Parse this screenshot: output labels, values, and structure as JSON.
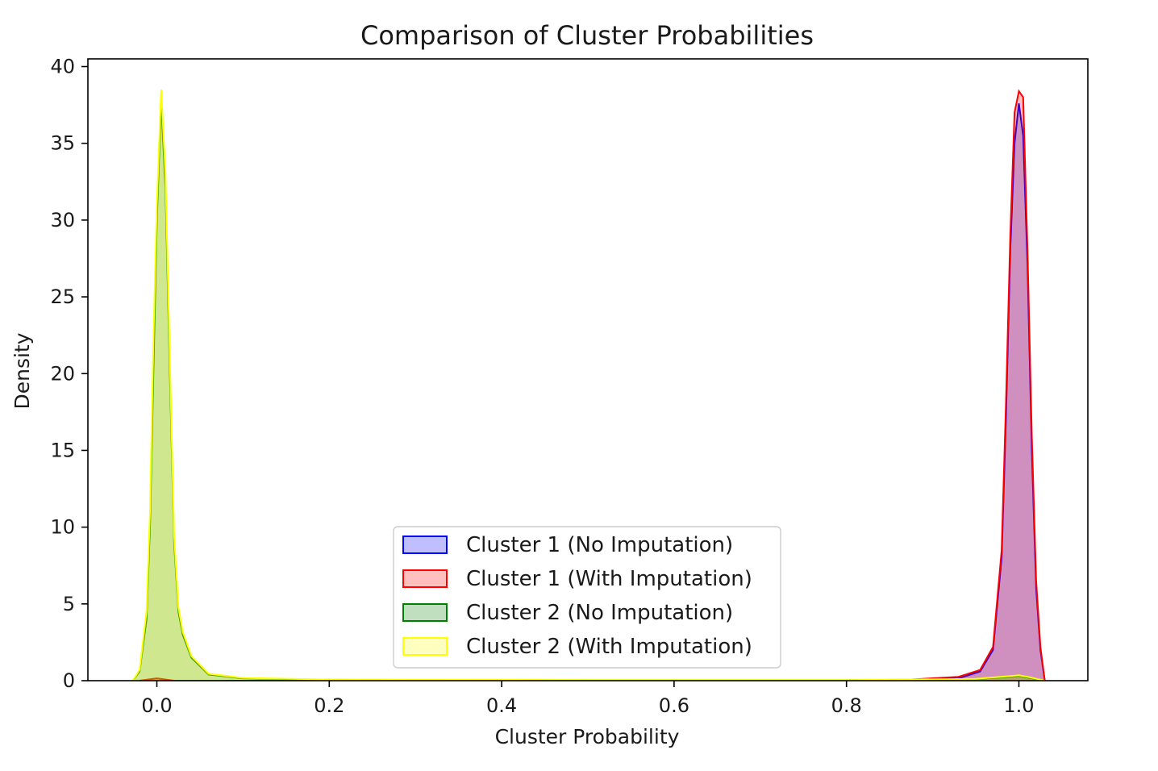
{
  "chart_data": {
    "type": "area",
    "subtype": "kde-density",
    "title": "Comparison of Cluster Probabilities",
    "xlabel": "Cluster Probability",
    "ylabel": "Density",
    "xlim": [
      -0.08,
      1.08
    ],
    "ylim": [
      0,
      40.5
    ],
    "xticks": [
      0.0,
      0.2,
      0.4,
      0.6,
      0.8,
      1.0
    ],
    "xtick_labels": [
      "0.0",
      "0.2",
      "0.4",
      "0.6",
      "0.8",
      "1.0"
    ],
    "yticks": [
      0,
      5,
      10,
      15,
      20,
      25,
      30,
      35,
      40
    ],
    "ytick_labels": [
      "0",
      "5",
      "10",
      "15",
      "20",
      "25",
      "30",
      "35",
      "40"
    ],
    "grid": false,
    "legend_position": "lower-center",
    "series": [
      {
        "name": "Cluster 1 (No Imputation)",
        "color": "#0000ff",
        "points": [
          [
            0.87,
            0
          ],
          [
            0.93,
            0.15
          ],
          [
            0.955,
            0.6
          ],
          [
            0.97,
            2.0
          ],
          [
            0.98,
            8.0
          ],
          [
            0.985,
            17.0
          ],
          [
            0.99,
            28.0
          ],
          [
            0.995,
            35.0
          ],
          [
            1.0,
            37.6
          ],
          [
            1.005,
            35.5
          ],
          [
            1.01,
            27.0
          ],
          [
            1.015,
            15.0
          ],
          [
            1.02,
            6.0
          ],
          [
            1.025,
            2.0
          ],
          [
            1.03,
            0
          ]
        ]
      },
      {
        "name": "Cluster 1 (With Imputation)",
        "color": "#ff0000",
        "points": [
          [
            -0.02,
            0
          ],
          [
            0.0,
            0.15
          ],
          [
            0.02,
            0
          ],
          [
            0.85,
            0
          ],
          [
            0.93,
            0.25
          ],
          [
            0.955,
            0.7
          ],
          [
            0.97,
            2.2
          ],
          [
            0.98,
            8.5
          ],
          [
            0.985,
            18.0
          ],
          [
            0.99,
            29.0
          ],
          [
            0.995,
            37.0
          ],
          [
            1.0,
            38.4
          ],
          [
            1.005,
            38.0
          ],
          [
            1.01,
            28.0
          ],
          [
            1.015,
            16.0
          ],
          [
            1.02,
            6.5
          ],
          [
            1.025,
            2.2
          ],
          [
            1.03,
            0
          ]
        ]
      },
      {
        "name": "Cluster 2 (No Imputation)",
        "color": "#008000",
        "points": [
          [
            -0.028,
            0
          ],
          [
            -0.02,
            0.6
          ],
          [
            -0.012,
            4.0
          ],
          [
            -0.008,
            10.0
          ],
          [
            -0.004,
            20.0
          ],
          [
            0.0,
            30.0
          ],
          [
            0.005,
            37.8
          ],
          [
            0.01,
            32.0
          ],
          [
            0.015,
            20.0
          ],
          [
            0.02,
            9.0
          ],
          [
            0.025,
            4.5
          ],
          [
            0.03,
            3.0
          ],
          [
            0.04,
            1.5
          ],
          [
            0.06,
            0.4
          ],
          [
            0.1,
            0.15
          ],
          [
            0.2,
            0.06
          ],
          [
            0.5,
            0.03
          ],
          [
            0.8,
            0.03
          ],
          [
            0.95,
            0.1
          ],
          [
            0.99,
            0.25
          ],
          [
            1.0,
            0.3
          ],
          [
            1.01,
            0.2
          ],
          [
            1.03,
            0
          ]
        ]
      },
      {
        "name": "Cluster 2 (With Imputation)",
        "color": "#ffff00",
        "points": [
          [
            -0.028,
            0
          ],
          [
            -0.02,
            0.7
          ],
          [
            -0.012,
            4.5
          ],
          [
            -0.008,
            11.0
          ],
          [
            -0.004,
            22.0
          ],
          [
            0.0,
            31.0
          ],
          [
            0.005,
            38.5
          ],
          [
            0.01,
            33.0
          ],
          [
            0.015,
            21.0
          ],
          [
            0.02,
            9.5
          ],
          [
            0.025,
            4.8
          ],
          [
            0.03,
            3.2
          ],
          [
            0.04,
            1.6
          ],
          [
            0.06,
            0.45
          ],
          [
            0.1,
            0.18
          ],
          [
            0.2,
            0.07
          ],
          [
            0.5,
            0.04
          ],
          [
            0.8,
            0.04
          ],
          [
            0.95,
            0.12
          ],
          [
            0.99,
            0.3
          ],
          [
            1.0,
            0.35
          ],
          [
            1.01,
            0.25
          ],
          [
            1.03,
            0
          ]
        ]
      }
    ]
  }
}
